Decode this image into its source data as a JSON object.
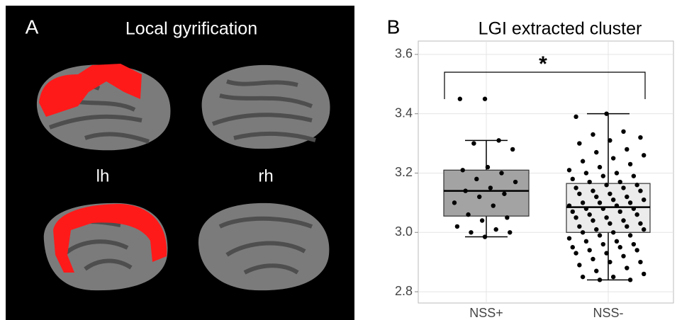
{
  "panel_a": {
    "label": "A",
    "title": "Local gyrification",
    "hemispheres": [
      "lh",
      "rh"
    ]
  },
  "chart_data": {
    "type": "box",
    "label": "B",
    "title": "LGI extracted cluster",
    "annotation": "*",
    "categories": [
      "NSS+",
      "NSS-"
    ],
    "boxes": [
      {
        "whisker_low": 2.985,
        "q1": 3.055,
        "median": 3.14,
        "q3": 3.21,
        "whisker_high": 3.31,
        "color": "#a3a3a3",
        "points": [
          3.45,
          3.45,
          3.31,
          3.3,
          3.28,
          3.22,
          3.21,
          3.2,
          3.18,
          3.17,
          3.15,
          3.14,
          3.13,
          3.12,
          3.1,
          3.09,
          3.06,
          3.05,
          3.04,
          3.02,
          3.01,
          3.0,
          3.0,
          2.985
        ]
      },
      {
        "whisker_low": 2.84,
        "q1": 3.0,
        "median": 3.085,
        "q3": 3.165,
        "whisker_high": 3.4,
        "color": "#ececec",
        "points": [
          3.4,
          3.39,
          3.34,
          3.33,
          3.32,
          3.31,
          3.3,
          3.28,
          3.27,
          3.26,
          3.25,
          3.24,
          3.23,
          3.22,
          3.21,
          3.2,
          3.2,
          3.19,
          3.19,
          3.18,
          3.17,
          3.17,
          3.16,
          3.16,
          3.15,
          3.15,
          3.14,
          3.14,
          3.13,
          3.13,
          3.12,
          3.12,
          3.11,
          3.11,
          3.1,
          3.1,
          3.1,
          3.09,
          3.09,
          3.08,
          3.08,
          3.08,
          3.07,
          3.07,
          3.06,
          3.06,
          3.05,
          3.05,
          3.04,
          3.04,
          3.03,
          3.03,
          3.02,
          3.02,
          3.01,
          3.01,
          3.0,
          3.0,
          2.99,
          2.99,
          2.98,
          2.97,
          2.97,
          2.96,
          2.96,
          2.95,
          2.95,
          2.94,
          2.94,
          2.93,
          2.93,
          2.92,
          2.91,
          2.9,
          2.9,
          2.89,
          2.88,
          2.87,
          2.86,
          2.85,
          2.85,
          2.84,
          2.84
        ]
      }
    ],
    "ylim": [
      2.762,
      3.645
    ],
    "yticks": [
      2.8,
      {
        "value": 3,
        "label": "3.0"
      },
      3.2,
      3.4,
      3.6
    ],
    "grid": true
  }
}
